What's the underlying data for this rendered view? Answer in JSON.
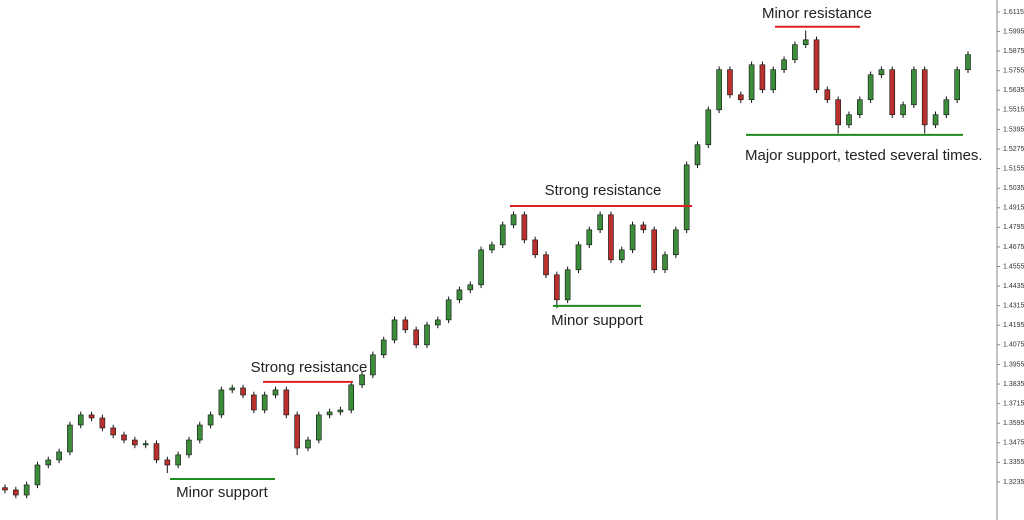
{
  "chart_data": {
    "type": "candlestick",
    "ylim": [
      1.3002,
      1.6188
    ],
    "yticks": [
      1.3235,
      1.3355,
      1.3475,
      1.3595,
      1.3715,
      1.3835,
      1.3955,
      1.4075,
      1.4195,
      1.4315,
      1.4435,
      1.4555,
      1.4675,
      1.4795,
      1.4915,
      1.5035,
      1.5155,
      1.5275,
      1.5395,
      1.5515,
      1.5635,
      1.5755,
      1.5875,
      1.5995,
      1.6115
    ],
    "up_color": "#3c8c3c",
    "down_color": "#b8312f",
    "open": [
      1.32,
      1.3186,
      1.3155,
      1.3217,
      1.3339,
      1.337,
      1.3419,
      1.3584,
      1.3646,
      1.3627,
      1.3566,
      1.3523,
      1.3492,
      1.3462,
      1.347,
      1.337,
      1.3339,
      1.3401,
      1.3492,
      1.3584,
      1.3646,
      1.3799,
      1.3811,
      1.3768,
      1.3676,
      1.3768,
      1.3799,
      1.3646,
      1.3443,
      1.3492,
      1.3646,
      1.3664,
      1.3676,
      1.383,
      1.3891,
      1.4014,
      1.4105,
      1.4228,
      1.4167,
      1.4075,
      1.4197,
      1.4228,
      1.4351,
      1.4412,
      1.4443,
      1.4657,
      1.4688,
      1.481,
      1.4872,
      1.4718,
      1.4627,
      1.4504,
      1.4351,
      1.4535,
      1.4688,
      1.478,
      1.4872,
      1.4596,
      1.4657,
      1.481,
      1.478,
      1.4535,
      1.4627,
      1.478,
      1.5178,
      1.5301,
      1.5515,
      1.5761,
      1.5607,
      1.5577,
      1.5791,
      1.5638,
      1.5761,
      1.5822,
      1.5914,
      1.5944,
      1.5638,
      1.5577,
      1.5423,
      1.5485,
      1.5577,
      1.573,
      1.5761,
      1.5485,
      1.5546,
      1.5761,
      1.5423,
      1.5485,
      1.5577,
      1.5761
    ],
    "high": [
      1.322,
      1.3206,
      1.3237,
      1.3359,
      1.339,
      1.3439,
      1.3604,
      1.3666,
      1.3666,
      1.3647,
      1.3586,
      1.3543,
      1.3512,
      1.349,
      1.349,
      1.339,
      1.3421,
      1.3512,
      1.3604,
      1.3666,
      1.3819,
      1.3831,
      1.3831,
      1.3788,
      1.3788,
      1.3819,
      1.3819,
      1.3666,
      1.3512,
      1.3666,
      1.3684,
      1.3696,
      1.385,
      1.3911,
      1.4034,
      1.4125,
      1.4248,
      1.4248,
      1.4187,
      1.4217,
      1.4248,
      1.4371,
      1.4432,
      1.4463,
      1.4677,
      1.4708,
      1.483,
      1.4892,
      1.4892,
      1.4738,
      1.4647,
      1.4524,
      1.4555,
      1.4708,
      1.48,
      1.4892,
      1.4892,
      1.4677,
      1.483,
      1.483,
      1.48,
      1.4647,
      1.48,
      1.5198,
      1.5321,
      1.5535,
      1.5781,
      1.5781,
      1.5627,
      1.5811,
      1.5811,
      1.5781,
      1.5842,
      1.5934,
      1.6,
      1.5964,
      1.5658,
      1.5597,
      1.5505,
      1.5597,
      1.575,
      1.5781,
      1.5781,
      1.5566,
      1.5781,
      1.5781,
      1.5505,
      1.5597,
      1.5781,
      1.5873
    ],
    "low": [
      1.3166,
      1.3135,
      1.3135,
      1.3197,
      1.3319,
      1.335,
      1.3399,
      1.3564,
      1.3607,
      1.3546,
      1.3503,
      1.3472,
      1.3442,
      1.3442,
      1.335,
      1.329,
      1.3319,
      1.3381,
      1.3472,
      1.3564,
      1.3626,
      1.3779,
      1.3748,
      1.3656,
      1.3656,
      1.3748,
      1.3626,
      1.34,
      1.3423,
      1.3472,
      1.3626,
      1.3644,
      1.3656,
      1.381,
      1.3871,
      1.3994,
      1.4085,
      1.4147,
      1.4055,
      1.4055,
      1.4177,
      1.4208,
      1.4331,
      1.4392,
      1.4423,
      1.4637,
      1.4668,
      1.479,
      1.4698,
      1.4607,
      1.4484,
      1.43,
      1.4331,
      1.4515,
      1.4668,
      1.476,
      1.4576,
      1.4576,
      1.4637,
      1.476,
      1.4515,
      1.4515,
      1.4607,
      1.476,
      1.5158,
      1.5281,
      1.5495,
      1.5587,
      1.5557,
      1.5557,
      1.5618,
      1.5618,
      1.5741,
      1.5802,
      1.5894,
      1.5618,
      1.5557,
      1.537,
      1.5403,
      1.5465,
      1.5557,
      1.571,
      1.5465,
      1.5465,
      1.5526,
      1.537,
      1.5403,
      1.5465,
      1.5557,
      1.5741
    ],
    "close": [
      1.3186,
      1.3155,
      1.3217,
      1.3339,
      1.337,
      1.3419,
      1.3584,
      1.3646,
      1.3627,
      1.3566,
      1.3523,
      1.3492,
      1.3462,
      1.347,
      1.337,
      1.3339,
      1.3401,
      1.3492,
      1.3584,
      1.3646,
      1.3799,
      1.3811,
      1.3768,
      1.3676,
      1.3768,
      1.3799,
      1.3646,
      1.3443,
      1.3492,
      1.3646,
      1.3664,
      1.3676,
      1.383,
      1.3891,
      1.4014,
      1.4105,
      1.4228,
      1.4167,
      1.4075,
      1.4197,
      1.4228,
      1.4351,
      1.4412,
      1.4443,
      1.4657,
      1.4688,
      1.481,
      1.4872,
      1.4718,
      1.4627,
      1.4504,
      1.4351,
      1.4535,
      1.4688,
      1.478,
      1.4872,
      1.4596,
      1.4657,
      1.481,
      1.478,
      1.4535,
      1.4627,
      1.478,
      1.5178,
      1.5301,
      1.5515,
      1.5761,
      1.5607,
      1.5577,
      1.5791,
      1.5638,
      1.5761,
      1.5822,
      1.5914,
      1.5944,
      1.5638,
      1.5577,
      1.5423,
      1.5485,
      1.5577,
      1.573,
      1.5761,
      1.5485,
      1.5546,
      1.5761,
      1.5423,
      1.5485,
      1.5577,
      1.5761,
      1.5853
    ],
    "annotations": [
      {
        "text": "Minor support",
        "level": 1.3253,
        "color": "#1e8c1e"
      },
      {
        "text": "Strong resistance",
        "level": 1.3848,
        "color": "#e02020"
      },
      {
        "text": "Strong resistance",
        "level": 1.4926,
        "color": "#e02020"
      },
      {
        "text": "Minor support",
        "level": 1.4314,
        "color": "#1e8c1e"
      },
      {
        "text": "Minor resistance",
        "level": 1.6024,
        "color": "#e02020"
      },
      {
        "text": "Major support, tested several times.",
        "level": 1.5362,
        "color": "#1e8c1e"
      }
    ]
  }
}
